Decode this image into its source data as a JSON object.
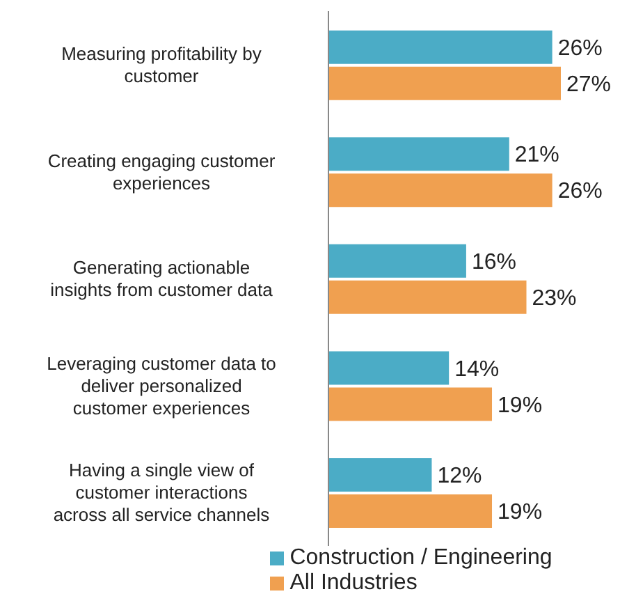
{
  "chart_data": {
    "type": "bar",
    "orientation": "horizontal",
    "categories": [
      "Measuring profitability by customer",
      "Creating engaging customer experiences",
      "Generating actionable insights from customer data",
      "Leveraging customer data to deliver personalized customer experiences",
      "Having a single view of customer interactions across all service channels"
    ],
    "series": [
      {
        "name": "Construction / Engineering",
        "color": "#4bacc6",
        "values": [
          26,
          21,
          16,
          14,
          12
        ],
        "value_labels": [
          "26%",
          "21%",
          "16%",
          "14%",
          "12%"
        ]
      },
      {
        "name": "All Industries",
        "color": "#f0a050",
        "values": [
          27,
          26,
          23,
          19,
          19
        ],
        "value_labels": [
          "27%",
          "26%",
          "23%",
          "19%",
          "19%"
        ]
      }
    ],
    "legend": "bottom"
  }
}
